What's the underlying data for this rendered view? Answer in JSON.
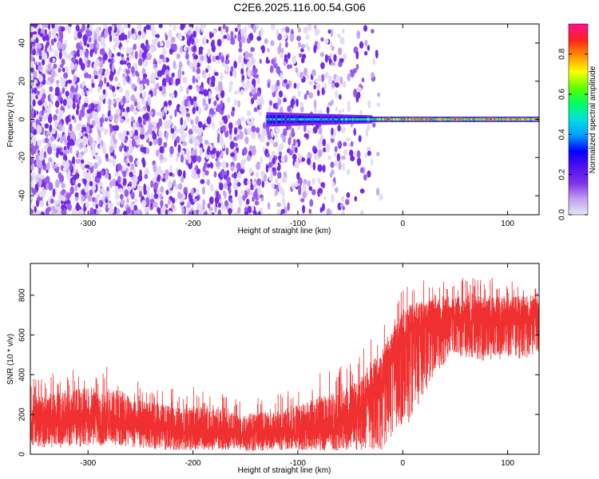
{
  "title": "C2E6.2025.116.00.54.G06",
  "chart_data": [
    {
      "type": "heatmap",
      "xlabel": "Height of straight line (km)",
      "ylabel": "Frequency (Hz)",
      "xlim": [
        -355,
        130
      ],
      "ylim": [
        -50,
        50
      ],
      "x_ticks": [
        -300,
        -200,
        -100,
        0,
        100
      ],
      "y_ticks": [
        -40,
        -20,
        0,
        20,
        40
      ],
      "colorbar": {
        "label": "Normalized spectral amplitude",
        "range": [
          0,
          0.95
        ],
        "ticks": [
          0.0,
          0.2,
          0.4,
          0.6,
          0.8
        ],
        "colormap": [
          "#e8e4f4",
          "#c0a0f0",
          "#8030e8",
          "#5010f0",
          "#0000ff",
          "#00a0ff",
          "#00e0e0",
          "#00ff60",
          "#60ff00",
          "#ffff00",
          "#ff9000",
          "#ff2020",
          "#ff1090"
        ]
      },
      "features": {
        "noise_region_x": [
          -355,
          -30
        ],
        "signal_band": {
          "x_start": -130,
          "x_end": 130,
          "frequency_center": 0,
          "peak_amplitude": 0.9
        }
      },
      "grid": false
    },
    {
      "type": "line",
      "xlabel": "Height of straight line (km)",
      "ylabel": "SNR (10 * v/v)",
      "xlim": [
        -355,
        130
      ],
      "ylim": [
        0,
        960
      ],
      "x_ticks": [
        -300,
        -200,
        -100,
        0,
        100
      ],
      "y_ticks": [
        0,
        200,
        400,
        600,
        800
      ],
      "series": [
        {
          "color": "#f03030",
          "envelope": {
            "x": [
              -355,
              -330,
              -300,
              -270,
              -250,
              -220,
              -200,
              -170,
              -150,
              -120,
              -100,
              -90,
              -75,
              -60,
              -50,
              -40,
              -35,
              -30,
              -25,
              -20,
              -15,
              -10,
              -5,
              0,
              5,
              10,
              15,
              20,
              30,
              40,
              50,
              60,
              80,
              100,
              120,
              130
            ],
            "low": [
              40,
              30,
              40,
              40,
              30,
              20,
              20,
              20,
              15,
              20,
              20,
              20,
              15,
              20,
              20,
              20,
              20,
              20,
              20,
              20,
              50,
              80,
              100,
              150,
              150,
              200,
              250,
              300,
              400,
              450,
              500,
              480,
              470,
              480,
              480,
              500
            ],
            "high": [
              380,
              420,
              460,
              440,
              360,
              330,
              340,
              320,
              290,
              300,
              360,
              400,
              420,
              450,
              480,
              520,
              600,
              580,
              620,
              640,
              680,
              700,
              780,
              850,
              860,
              870,
              870,
              880,
              880,
              880,
              880,
              890,
              900,
              880,
              890,
              880
            ],
            "typical": [
              170,
              185,
              190,
              180,
              150,
              130,
              120,
              110,
              105,
              110,
              120,
              130,
              140,
              150,
              170,
              200,
              280,
              300,
              330,
              380,
              430,
              480,
              540,
              580,
              600,
              620,
              640,
              660,
              670,
              680,
              690,
              680,
              680,
              690,
              690,
              700
            ]
          }
        }
      ],
      "grid": false
    }
  ]
}
